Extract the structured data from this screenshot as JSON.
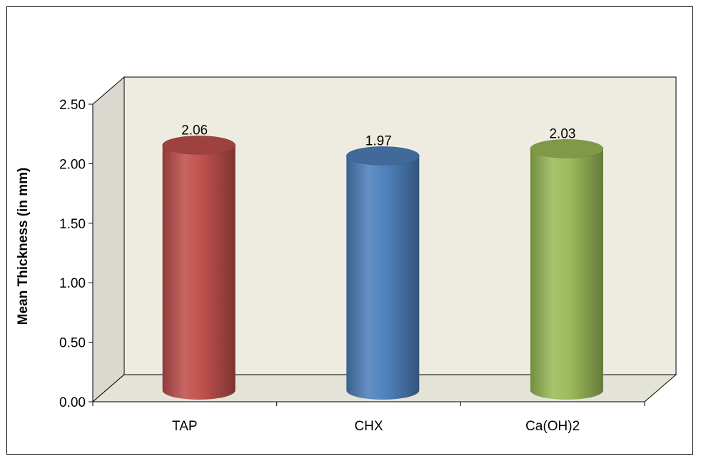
{
  "chart_data": {
    "type": "bar",
    "style": "3d-cylinder",
    "categories": [
      "TAP",
      "CHX",
      "Ca(OH)2"
    ],
    "values": [
      2.06,
      1.97,
      2.03
    ],
    "data_labels": [
      "2.06",
      "1.97",
      "2.03"
    ],
    "title": "",
    "xlabel": "",
    "ylabel": "Mean Thickness (in mm)",
    "ylim": [
      0,
      2.5
    ],
    "yticks": [
      "0.00",
      "0.50",
      "1.00",
      "1.50",
      "2.00",
      "2.50"
    ],
    "grid": false,
    "legend": "none",
    "colors": [
      "#c0504d",
      "#4f81bd",
      "#9bbb59"
    ],
    "wall_color": "#eeece1"
  }
}
